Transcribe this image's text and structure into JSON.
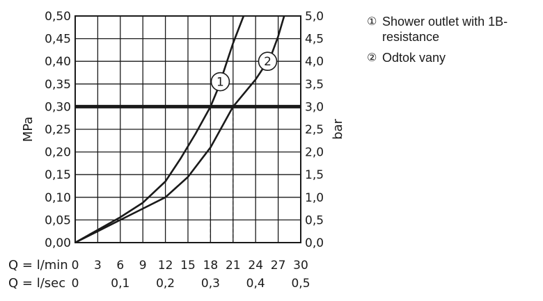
{
  "chart_data": {
    "type": "line",
    "x_quantity": "Q",
    "xlim": [
      0,
      30
    ],
    "x_ticks_lmin": [
      "0",
      "3",
      "6",
      "9",
      "12",
      "15",
      "18",
      "21",
      "24",
      "27",
      "30"
    ],
    "x_ticks_lsec": [
      "0",
      "0,1",
      "0,2",
      "0,3",
      "0,4",
      "0,5"
    ],
    "x_label_lmin": "Q = l/min",
    "x_label_lsec": "Q = l/sec",
    "ylim": [
      0,
      0.5
    ],
    "y_ticks_left": [
      "0,00",
      "0,05",
      "0,10",
      "0,15",
      "0,20",
      "0,25",
      "0,30",
      "0,35",
      "0,40",
      "0,45",
      "0,50"
    ],
    "y_ticks_right": [
      "0,0",
      "0,5",
      "1,0",
      "1,5",
      "2,0",
      "2,5",
      "3,0",
      "3,5",
      "4,0",
      "4,5",
      "5,0"
    ],
    "ylabel_left": "MPa",
    "ylabel_right": "bar",
    "grid": true,
    "reference_line": {
      "y": 0.3
    },
    "drop_lines_x": [
      18,
      21
    ],
    "series": [
      {
        "marker": "1",
        "x": [
          0,
          3,
          6,
          9,
          12,
          14,
          16,
          18,
          19,
          20,
          21,
          22.4
        ],
        "y": [
          0,
          0.028,
          0.056,
          0.088,
          0.135,
          0.185,
          0.24,
          0.3,
          0.34,
          0.39,
          0.44,
          0.5
        ]
      },
      {
        "marker": "2",
        "x": [
          0,
          3,
          6,
          9,
          12,
          15,
          18,
          21,
          24,
          26,
          27,
          27.8
        ],
        "y": [
          0,
          0.025,
          0.05,
          0.075,
          0.1,
          0.145,
          0.21,
          0.3,
          0.36,
          0.41,
          0.455,
          0.5
        ]
      }
    ]
  },
  "legend": [
    {
      "marker": "①",
      "label": "Shower outlet with 1B-resistance"
    },
    {
      "marker": "②",
      "label": "Odtok vany"
    }
  ],
  "colors": {
    "line": "#1a1a1a",
    "grid": "#1a1a1a",
    "background": "#ffffff"
  }
}
